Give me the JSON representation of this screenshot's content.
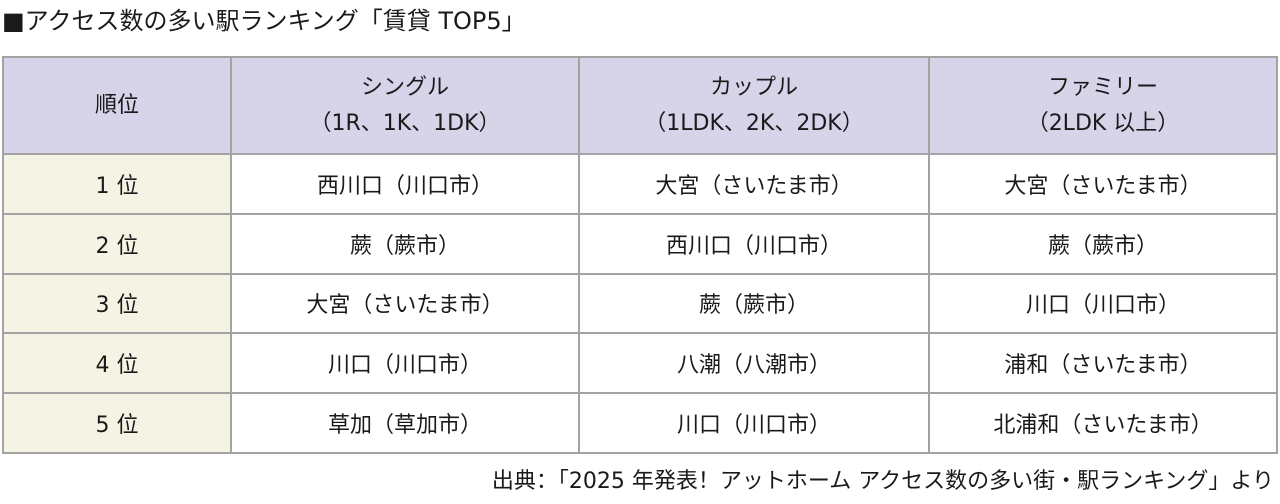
{
  "title": "■アクセス数の多い駅ランキング「賃貸 TOP5」",
  "table": {
    "header": {
      "rank": "順位",
      "columns": [
        {
          "name": "シングル",
          "sub": "（1R、1K、1DK）"
        },
        {
          "name": "カップル",
          "sub": "（1LDK、2K、2DK）"
        },
        {
          "name": "ファミリー",
          "sub": "（2LDK 以上）"
        }
      ]
    },
    "rows": [
      {
        "rank": "1 位",
        "cells": [
          "西川口（川口市）",
          "大宮（さいたま市）",
          "大宮（さいたま市）"
        ]
      },
      {
        "rank": "2 位",
        "cells": [
          "蕨（蕨市）",
          "西川口（川口市）",
          "蕨（蕨市）"
        ]
      },
      {
        "rank": "3 位",
        "cells": [
          "大宮（さいたま市）",
          "蕨（蕨市）",
          "川口（川口市）"
        ]
      },
      {
        "rank": "4 位",
        "cells": [
          "川口（川口市）",
          "八潮（八潮市）",
          "浦和（さいたま市）"
        ]
      },
      {
        "rank": "5 位",
        "cells": [
          "草加（草加市）",
          "川口（川口市）",
          "北浦和（さいたま市）"
        ]
      }
    ]
  },
  "source": "出典：「2025 年発表！アットホーム アクセス数の多い街・駅ランキング」より"
}
